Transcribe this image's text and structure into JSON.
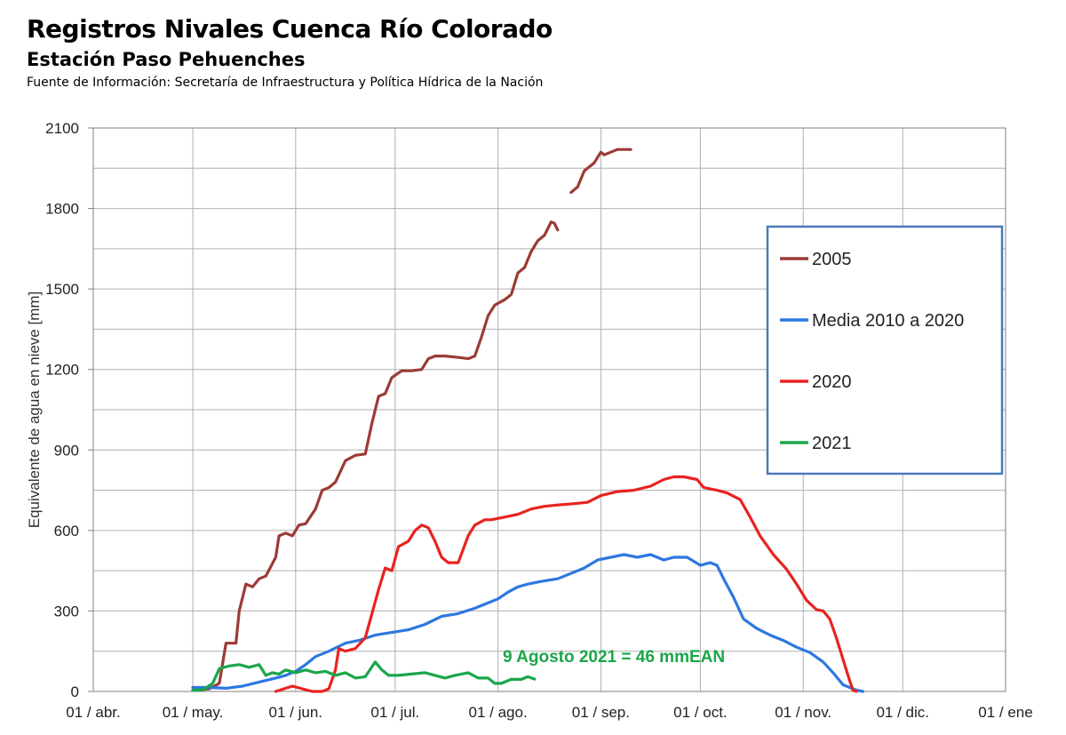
{
  "header": {
    "title": "Registros Nivales Cuenca Río Colorado",
    "subtitle": "Estación Paso Pehuenches",
    "source": "Fuente de Información: Secretaría de Infraestructura y Política Hídrica de la Nación"
  },
  "chart_data": {
    "type": "line",
    "ylabel": "Equivalente de agua en nieve [mm]",
    "ylim": [
      0,
      2100
    ],
    "yticks": [
      0,
      300,
      600,
      900,
      1200,
      1500,
      1800,
      2100
    ],
    "xlim": [
      "01 / abr.",
      "01 / ene"
    ],
    "xtick_labels": [
      "01 / abr.",
      "01 / may.",
      "01 / jun.",
      "01 / jul.",
      "01 / ago.",
      "01 / sep.",
      "01 / oct.",
      "01 / nov.",
      "01 / dic.",
      "01 / ene"
    ],
    "xtick_days": [
      0,
      30,
      61,
      91,
      122,
      153,
      183,
      214,
      244,
      275
    ],
    "grid": true,
    "legend_position": "right",
    "annotation": "9 Agosto 2021 = 46 mmEAN",
    "annotation_color": "#1aa64a",
    "series": [
      {
        "name": "2005",
        "color": "#9b3b36",
        "segments": [
          [
            [
              30,
              5
            ],
            [
              35,
              10
            ],
            [
              38,
              30
            ],
            [
              40,
              180
            ],
            [
              43,
              180
            ],
            [
              44,
              300
            ],
            [
              46,
              400
            ],
            [
              48,
              390
            ],
            [
              50,
              420
            ],
            [
              52,
              430
            ],
            [
              55,
              500
            ],
            [
              56,
              580
            ],
            [
              58,
              590
            ],
            [
              60,
              580
            ],
            [
              62,
              620
            ],
            [
              64,
              625
            ],
            [
              67,
              680
            ],
            [
              69,
              750
            ],
            [
              71,
              760
            ],
            [
              73,
              780
            ],
            [
              76,
              860
            ],
            [
              79,
              880
            ],
            [
              82,
              885
            ],
            [
              84,
              1000
            ],
            [
              86,
              1100
            ],
            [
              88,
              1110
            ],
            [
              90,
              1170
            ],
            [
              93,
              1195
            ],
            [
              96,
              1195
            ],
            [
              99,
              1200
            ],
            [
              101,
              1240
            ],
            [
              103,
              1250
            ],
            [
              106,
              1250
            ],
            [
              110,
              1245
            ],
            [
              113,
              1240
            ],
            [
              115,
              1250
            ],
            [
              117,
              1320
            ],
            [
              119,
              1400
            ],
            [
              121,
              1440
            ],
            [
              124,
              1460
            ],
            [
              126,
              1480
            ],
            [
              128,
              1560
            ],
            [
              130,
              1580
            ],
            [
              132,
              1640
            ],
            [
              134,
              1680
            ],
            [
              136,
              1700
            ],
            [
              138,
              1750
            ],
            [
              139,
              1745
            ],
            [
              140,
              1720
            ]
          ],
          [
            [
              144,
              1860
            ],
            [
              146,
              1880
            ],
            [
              148,
              1940
            ],
            [
              151,
              1970
            ],
            [
              153,
              2010
            ],
            [
              154,
              2000
            ],
            [
              156,
              2010
            ],
            [
              158,
              2020
            ],
            [
              162,
              2020
            ]
          ]
        ]
      },
      {
        "name": "Media 2010 a 2020",
        "color": "#2c78e0",
        "segments": [
          [
            [
              30,
              15
            ],
            [
              35,
              15
            ],
            [
              40,
              12
            ],
            [
              45,
              20
            ],
            [
              50,
              35
            ],
            [
              55,
              50
            ],
            [
              58,
              60
            ],
            [
              61,
              75
            ],
            [
              64,
              100
            ],
            [
              67,
              130
            ],
            [
              71,
              150
            ],
            [
              76,
              180
            ],
            [
              80,
              190
            ],
            [
              85,
              210
            ],
            [
              90,
              220
            ],
            [
              95,
              230
            ],
            [
              100,
              250
            ],
            [
              105,
              280
            ],
            [
              110,
              290
            ],
            [
              115,
              310
            ],
            [
              119,
              330
            ],
            [
              122,
              345
            ],
            [
              125,
              370
            ],
            [
              128,
              390
            ],
            [
              131,
              400
            ],
            [
              135,
              410
            ],
            [
              140,
              420
            ],
            [
              144,
              440
            ],
            [
              148,
              460
            ],
            [
              152,
              490
            ],
            [
              156,
              500
            ],
            [
              160,
              510
            ],
            [
              164,
              500
            ],
            [
              168,
              510
            ],
            [
              172,
              490
            ],
            [
              175,
              500
            ],
            [
              179,
              500
            ],
            [
              183,
              470
            ],
            [
              186,
              480
            ],
            [
              188,
              470
            ],
            [
              190,
              420
            ],
            [
              193,
              350
            ],
            [
              196,
              270
            ],
            [
              200,
              235
            ],
            [
              204,
              210
            ],
            [
              208,
              190
            ],
            [
              212,
              165
            ],
            [
              216,
              145
            ],
            [
              220,
              110
            ],
            [
              223,
              70
            ],
            [
              226,
              25
            ],
            [
              230,
              5
            ],
            [
              232,
              0
            ]
          ]
        ]
      },
      {
        "name": "2020",
        "color": "#e8231f",
        "segments": [
          [
            [
              55,
              0
            ],
            [
              60,
              20
            ],
            [
              63,
              10
            ],
            [
              66,
              0
            ],
            [
              69,
              0
            ],
            [
              71,
              10
            ],
            [
              73,
              80
            ],
            [
              74,
              160
            ],
            [
              76,
              150
            ],
            [
              79,
              160
            ],
            [
              82,
              200
            ],
            [
              84,
              290
            ],
            [
              86,
              380
            ],
            [
              88,
              460
            ],
            [
              90,
              450
            ],
            [
              92,
              540
            ],
            [
              95,
              560
            ],
            [
              97,
              600
            ],
            [
              99,
              620
            ],
            [
              101,
              610
            ],
            [
              103,
              560
            ],
            [
              105,
              500
            ],
            [
              107,
              480
            ],
            [
              110,
              480
            ],
            [
              113,
              580
            ],
            [
              115,
              620
            ],
            [
              118,
              640
            ],
            [
              120,
              640
            ],
            [
              124,
              650
            ],
            [
              128,
              660
            ],
            [
              132,
              680
            ],
            [
              136,
              690
            ],
            [
              140,
              695
            ],
            [
              145,
              700
            ],
            [
              149,
              705
            ],
            [
              153,
              730
            ],
            [
              158,
              745
            ],
            [
              163,
              750
            ],
            [
              168,
              765
            ],
            [
              172,
              790
            ],
            [
              175,
              800
            ],
            [
              178,
              800
            ],
            [
              182,
              790
            ],
            [
              184,
              760
            ],
            [
              188,
              750
            ],
            [
              191,
              740
            ],
            [
              195,
              715
            ],
            [
              198,
              650
            ],
            [
              201,
              580
            ],
            [
              205,
              510
            ],
            [
              209,
              455
            ],
            [
              212,
              400
            ],
            [
              215,
              340
            ],
            [
              218,
              305
            ],
            [
              220,
              300
            ],
            [
              222,
              270
            ],
            [
              224,
              200
            ],
            [
              226,
              120
            ],
            [
              228,
              40
            ],
            [
              229,
              5
            ],
            [
              230,
              0
            ]
          ]
        ]
      },
      {
        "name": "2021",
        "color": "#1aa64a",
        "segments": [
          [
            [
              30,
              5
            ],
            [
              33,
              5
            ],
            [
              36,
              30
            ],
            [
              38,
              85
            ],
            [
              41,
              95
            ],
            [
              44,
              100
            ],
            [
              47,
              90
            ],
            [
              50,
              100
            ],
            [
              52,
              60
            ],
            [
              54,
              70
            ],
            [
              56,
              65
            ],
            [
              58,
              80
            ],
            [
              61,
              70
            ],
            [
              64,
              80
            ],
            [
              67,
              70
            ],
            [
              70,
              75
            ],
            [
              73,
              60
            ],
            [
              76,
              70
            ],
            [
              79,
              50
            ],
            [
              82,
              55
            ],
            [
              85,
              110
            ],
            [
              87,
              80
            ],
            [
              89,
              60
            ],
            [
              92,
              60
            ],
            [
              96,
              65
            ],
            [
              100,
              70
            ],
            [
              103,
              60
            ],
            [
              106,
              50
            ],
            [
              109,
              60
            ],
            [
              113,
              70
            ],
            [
              116,
              50
            ],
            [
              119,
              50
            ],
            [
              121,
              30
            ],
            [
              123,
              30
            ],
            [
              126,
              45
            ],
            [
              129,
              45
            ],
            [
              131,
              55
            ],
            [
              133,
              46
            ]
          ]
        ]
      }
    ]
  }
}
